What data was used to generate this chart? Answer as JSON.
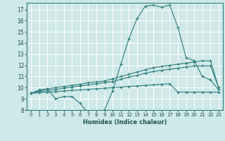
{
  "title": "",
  "xlabel": "Humidex (Indice chaleur)",
  "ylabel": "",
  "bg_color": "#cfe8e8",
  "grid_color": "#ffffff",
  "line_color": "#2e7d7d",
  "xlim": [
    -0.5,
    23.5
  ],
  "ylim": [
    8,
    17.6
  ],
  "xticks": [
    0,
    1,
    2,
    3,
    4,
    5,
    6,
    7,
    8,
    9,
    10,
    11,
    12,
    13,
    14,
    15,
    16,
    17,
    18,
    19,
    20,
    21,
    22,
    23
  ],
  "yticks": [
    8,
    9,
    10,
    11,
    12,
    13,
    14,
    15,
    16,
    17
  ],
  "series": [
    [
      9.5,
      9.8,
      9.9,
      9.0,
      9.2,
      9.2,
      8.6,
      7.7,
      7.7,
      8.0,
      9.7,
      12.1,
      14.4,
      16.2,
      17.3,
      17.4,
      17.2,
      17.4,
      15.4,
      12.7,
      12.4,
      11.0,
      10.7,
      9.8
    ],
    [
      9.5,
      9.7,
      9.9,
      10.0,
      10.1,
      10.2,
      10.3,
      10.45,
      10.5,
      10.6,
      10.8,
      11.0,
      11.2,
      11.4,
      11.6,
      11.8,
      11.9,
      12.0,
      12.1,
      12.2,
      12.3,
      12.4,
      12.4,
      10.0
    ],
    [
      9.5,
      9.6,
      9.75,
      9.85,
      9.95,
      10.05,
      10.15,
      10.25,
      10.35,
      10.45,
      10.55,
      10.75,
      10.95,
      11.1,
      11.3,
      11.45,
      11.55,
      11.65,
      11.75,
      11.85,
      11.95,
      11.95,
      11.95,
      10.0
    ],
    [
      9.5,
      9.55,
      9.6,
      9.65,
      9.7,
      9.75,
      9.8,
      9.85,
      9.9,
      9.95,
      10.0,
      10.05,
      10.1,
      10.15,
      10.2,
      10.25,
      10.3,
      10.35,
      9.6,
      9.6,
      9.6,
      9.6,
      9.6,
      9.6
    ]
  ]
}
